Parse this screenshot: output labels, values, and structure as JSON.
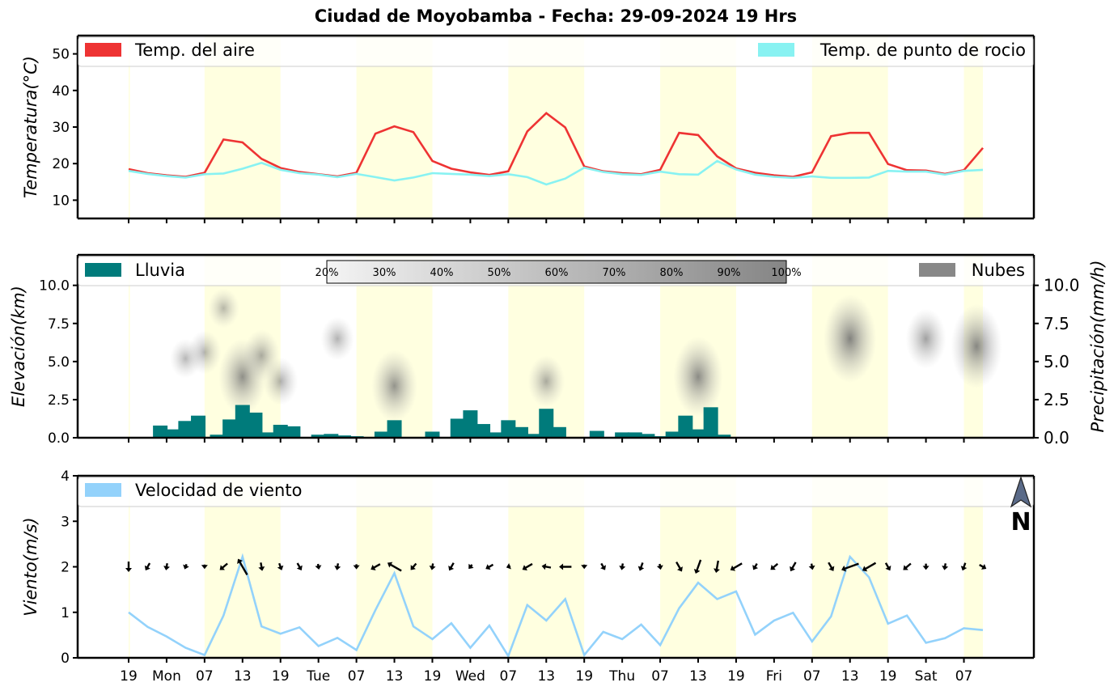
{
  "title": "Ciudad de Moyobamba   -   Fecha: 29-09-2024 19 Hrs",
  "x_tick_labels": [
    "19",
    "Mon",
    "07",
    "13",
    "19",
    "Tue",
    "07",
    "13",
    "19",
    "Wed",
    "07",
    "13",
    "19",
    "Thu",
    "07",
    "13",
    "19",
    "Fri",
    "07",
    "13",
    "19",
    "Sat",
    "07"
  ],
  "daytime_bands_hours": [
    [
      0,
      0.2
    ],
    [
      12,
      24
    ],
    [
      36,
      48
    ],
    [
      60,
      72
    ],
    [
      84,
      96
    ],
    [
      108,
      120
    ],
    [
      132,
      135
    ]
  ],
  "colors": {
    "air_temp": "#ee3333",
    "dew_point": "#88f2f2",
    "rain": "#007b7b",
    "clouds": "#888888",
    "wind": "#93d2fb",
    "day_band": "#ffffe0"
  },
  "north_icon_label": "N",
  "chart_data": [
    {
      "type": "line",
      "title": "Ciudad de Moyobamba   -   Fecha: 29-09-2024 19 Hrs",
      "ylabel": "Temperatura(°C)",
      "ylim": [
        5,
        55
      ],
      "y_ticks": [
        10,
        20,
        30,
        40,
        50
      ],
      "x_hours": [
        0,
        3,
        6,
        9,
        12,
        15,
        18,
        21,
        24,
        27,
        30,
        33,
        36,
        39,
        42,
        45,
        48,
        51,
        54,
        57,
        60,
        63,
        66,
        69,
        72,
        75,
        78,
        81,
        84,
        87,
        90,
        93,
        96,
        99,
        102,
        105,
        108,
        111,
        114,
        117,
        120,
        123,
        126,
        129,
        132,
        135
      ],
      "legend": [
        "Temp. del aire",
        "Temp. de punto de rocio"
      ],
      "series": [
        {
          "name": "Temp. del aire",
          "values": [
            18.5,
            17.4,
            16.8,
            16.4,
            17.5,
            26.6,
            25.8,
            21.3,
            18.8,
            17.7,
            17.1,
            16.5,
            17.5,
            28.2,
            30.2,
            28.6,
            20.7,
            18.6,
            17.6,
            16.9,
            17.9,
            28.8,
            33.8,
            29.9,
            19.2,
            17.9,
            17.4,
            17.1,
            18.3,
            28.4,
            27.8,
            22.0,
            18.7,
            17.5,
            16.8,
            16.4,
            17.6,
            27.5,
            28.4,
            28.4,
            19.9,
            18.2,
            18.1,
            17.2,
            18.2,
            24.3
          ]
        },
        {
          "name": "Temp. de punto de rocio",
          "values": [
            18.0,
            17.2,
            16.6,
            16.2,
            17.1,
            17.3,
            18.6,
            20.2,
            18.3,
            17.4,
            17.0,
            16.3,
            17.2,
            16.3,
            15.4,
            16.2,
            17.4,
            17.2,
            17.0,
            16.6,
            17.1,
            16.3,
            14.3,
            15.9,
            18.9,
            17.7,
            17.1,
            16.9,
            17.8,
            17.1,
            17.0,
            20.7,
            18.4,
            17.0,
            16.4,
            16.1,
            16.5,
            16.1,
            16.1,
            16.2,
            18.0,
            17.8,
            17.8,
            17.0,
            18.0,
            18.3
          ]
        }
      ]
    },
    {
      "type": "bar",
      "ylabel": "Elevación(km)",
      "ylabel_right": "Precipitación(mm/h)",
      "ylim": [
        0,
        12
      ],
      "y_ticks": [
        "0.0",
        "2.5",
        "5.0",
        "7.5",
        "10.0"
      ],
      "legend": [
        "Lluvia",
        "Nubes"
      ],
      "colorbar_labels": [
        "20%",
        "30%",
        "40%",
        "50%",
        "60%",
        "70%",
        "80%",
        "90%",
        "100%"
      ],
      "rain_x_hours": [
        2,
        5,
        7,
        9,
        11,
        14,
        16,
        18,
        20,
        22,
        24,
        26,
        28,
        30,
        32,
        34,
        36,
        38,
        40,
        42,
        44,
        46,
        48,
        50,
        52,
        54,
        56,
        58,
        60,
        62,
        64,
        66,
        68,
        70,
        72,
        74,
        76,
        78,
        80,
        82,
        84,
        86,
        88,
        90,
        92,
        94,
        96,
        98,
        100,
        102,
        104,
        106,
        108,
        110,
        112,
        114,
        116,
        118,
        120,
        122,
        124,
        126,
        128,
        130,
        132,
        134
      ],
      "rain_mm_h": [
        0.0,
        0.8,
        0.55,
        1.1,
        1.45,
        0.2,
        1.2,
        2.15,
        1.65,
        0.35,
        0.85,
        0.75,
        0.05,
        0.2,
        0.25,
        0.15,
        0.1,
        0.02,
        0.4,
        1.15,
        0.05,
        0.05,
        0.4,
        0.05,
        1.25,
        1.8,
        0.9,
        0.35,
        1.15,
        0.7,
        0.25,
        1.9,
        0.7,
        0.02,
        0.02,
        0.45,
        0.02,
        0.35,
        0.35,
        0.25,
        0.1,
        0.4,
        1.45,
        0.55,
        2.0,
        0.2,
        0,
        0,
        0,
        0,
        0,
        0,
        0,
        0,
        0,
        0,
        0,
        0,
        0,
        0,
        0,
        0,
        0,
        0,
        0,
        0
      ],
      "clouds": [
        {
          "x_hours": 9,
          "km": 5.2,
          "cover": 0.25
        },
        {
          "x_hours": 12,
          "km": 5.6,
          "cover": 0.3
        },
        {
          "x_hours": 15,
          "km": 8.5,
          "cover": 0.25
        },
        {
          "x_hours": 18,
          "km": 4.0,
          "cover": 0.7
        },
        {
          "x_hours": 21,
          "km": 5.4,
          "cover": 0.4
        },
        {
          "x_hours": 24,
          "km": 3.7,
          "cover": 0.35
        },
        {
          "x_hours": 33,
          "km": 6.5,
          "cover": 0.3
        },
        {
          "x_hours": 42,
          "km": 3.4,
          "cover": 0.65
        },
        {
          "x_hours": 66,
          "km": 3.7,
          "cover": 0.4
        },
        {
          "x_hours": 90,
          "km": 4.0,
          "cover": 0.75
        },
        {
          "x_hours": 114,
          "km": 6.5,
          "cover": 0.85
        },
        {
          "x_hours": 126,
          "km": 6.5,
          "cover": 0.5
        },
        {
          "x_hours": 134,
          "km": 6.0,
          "cover": 0.8
        }
      ]
    },
    {
      "type": "line",
      "ylabel": "Viento(m/s)",
      "ylim": [
        0,
        4
      ],
      "y_ticks": [
        0,
        1,
        2,
        3,
        4
      ],
      "legend": [
        "Velocidad de viento"
      ],
      "x_hours": [
        0,
        3,
        6,
        9,
        12,
        15,
        18,
        21,
        24,
        27,
        30,
        33,
        36,
        39,
        42,
        45,
        48,
        51,
        54,
        57,
        60,
        63,
        66,
        69,
        72,
        75,
        78,
        81,
        84,
        87,
        90,
        93,
        96,
        99,
        102,
        105,
        108,
        111,
        114,
        117,
        120,
        123,
        126,
        129,
        132,
        135
      ],
      "series": [
        {
          "name": "Velocidad de viento",
          "values": [
            1.0,
            0.68,
            0.47,
            0.22,
            0.06,
            0.93,
            2.22,
            0.69,
            0.53,
            0.67,
            0.26,
            0.44,
            0.17,
            1.05,
            1.86,
            0.69,
            0.41,
            0.76,
            0.22,
            0.71,
            0.04,
            1.16,
            0.82,
            1.29,
            0.06,
            0.57,
            0.41,
            0.73,
            0.28,
            1.09,
            1.65,
            1.29,
            1.46,
            0.51,
            0.82,
            0.99,
            0.36,
            0.91,
            2.22,
            1.77,
            0.75,
            0.93,
            0.33,
            0.43,
            0.65,
            0.61
          ]
        }
      ],
      "wind_arrow_dir_deg": [
        90,
        120,
        100,
        110,
        90,
        140,
        240,
        80,
        70,
        60,
        80,
        100,
        90,
        150,
        210,
        130,
        100,
        120,
        130,
        150,
        160,
        150,
        190,
        180,
        90,
        60,
        100,
        110,
        80,
        60,
        110,
        100,
        150,
        120,
        140,
        120,
        80,
        60,
        160,
        150,
        60,
        140,
        90,
        100,
        110,
        30
      ]
    }
  ]
}
